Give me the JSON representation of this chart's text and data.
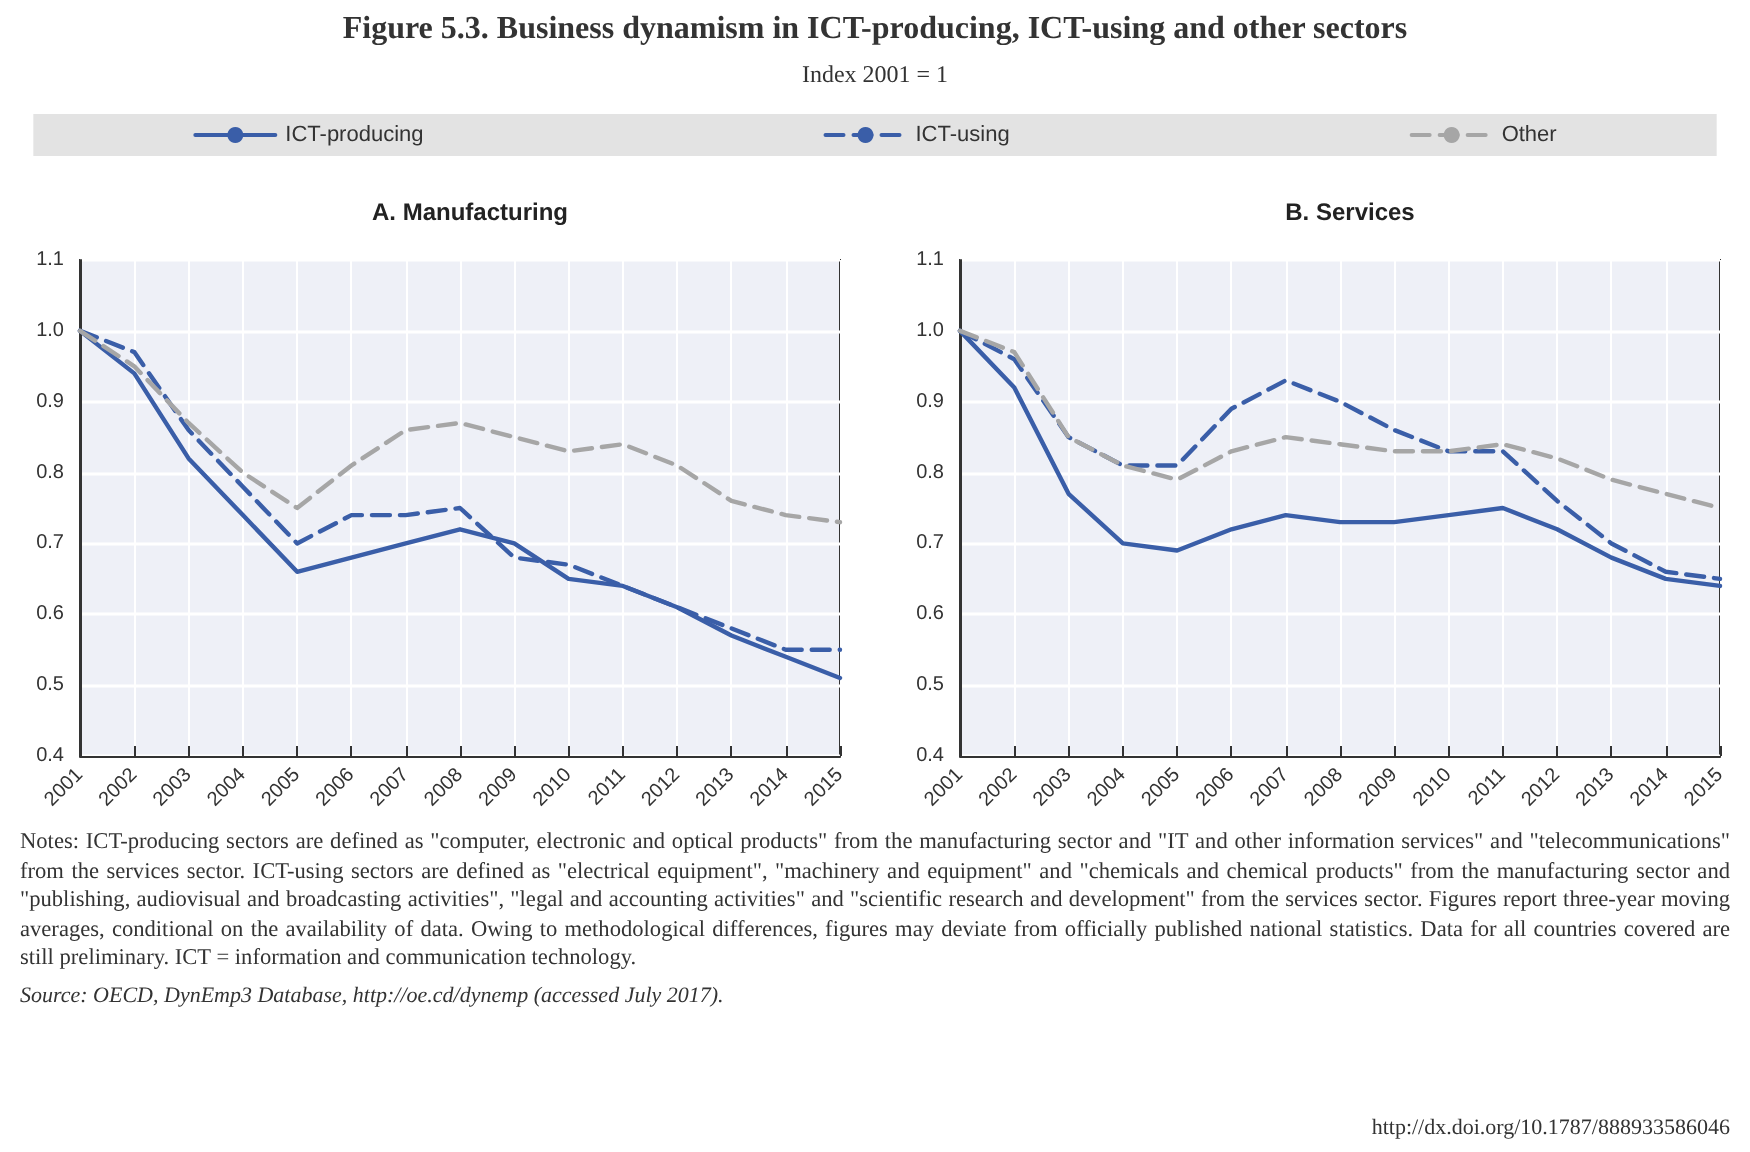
{
  "chart_data": [
    {
      "type": "line",
      "title": "A. Manufacturing",
      "annotations": [
        "Figure 5.3. Business dynamism in ICT-producing, ICT-using and other sectors",
        "Index 2001 = 1"
      ],
      "categories": [
        "2001",
        "2002",
        "2003",
        "2004",
        "2005",
        "2006",
        "2007",
        "2008",
        "2009",
        "2010",
        "2011",
        "2012",
        "2013",
        "2014",
        "2015"
      ],
      "series": [
        {
          "name": "ICT-producing",
          "color": "#3a5ea8",
          "line_style": "solid",
          "values": [
            1.0,
            0.94,
            0.82,
            0.74,
            0.66,
            0.68,
            0.7,
            0.72,
            0.7,
            0.65,
            0.64,
            0.61,
            0.57,
            0.54,
            0.51
          ]
        },
        {
          "name": "ICT-using",
          "color": "#3a5ea8",
          "line_style": "dashed",
          "values": [
            1.0,
            0.97,
            0.86,
            0.78,
            0.7,
            0.74,
            0.74,
            0.75,
            0.68,
            0.67,
            0.64,
            0.61,
            0.58,
            0.55,
            0.55
          ]
        },
        {
          "name": "Other",
          "color": "#a6a6a6",
          "line_style": "dashed",
          "values": [
            1.0,
            0.95,
            0.87,
            0.8,
            0.75,
            0.81,
            0.86,
            0.87,
            0.85,
            0.83,
            0.84,
            0.81,
            0.76,
            0.74,
            0.73
          ]
        }
      ],
      "ylim": [
        0.4,
        1.1
      ],
      "yticks": [
        0.4,
        0.5,
        0.6,
        0.7,
        0.8,
        0.9,
        {
          "value": 1,
          "label": "1.0"
        },
        1.1
      ],
      "grid": true,
      "legend": "top",
      "marker": "none"
    },
    {
      "type": "line",
      "title": "B. Services",
      "annotations": [
        "Notes: ICT-producing sectors are defined as \"computer, electronic and optical products\" from the manufacturing sector and \"IT and other information services\" and \"telecommunications\" from the services sector. ICT-using sectors are defined as \"electrical equipment\", \"machinery and equipment\" and \"chemicals and chemical products\" from the manufacturing sector and \"publishing, audiovisual and broadcasting activities\", \"legal and accounting activities\" and \"scientific research and development\" from the services sector. Figures report three-year moving averages, conditional on the availability of data. Owing to methodological differences, figures may deviate from officially published national statistics. Data for all countries covered are still preliminary. ICT = information and communication technology.",
        "Source: OECD, DynEmp3 Database, http://oe.cd/dynemp (accessed July 2017).",
        "http://dx.doi.org/10.1787/888933586046"
      ],
      "categories": [
        "2001",
        "2002",
        "2003",
        "2004",
        "2005",
        "2006",
        "2007",
        "2008",
        "2009",
        "2010",
        "2011",
        "2012",
        "2013",
        "2014",
        "2015"
      ],
      "series": [
        {
          "color": "#3a5ea8",
          "line_style": "solid",
          "values": [
            1.0,
            0.92,
            0.77,
            0.7,
            0.69,
            0.72,
            0.74,
            0.73,
            0.73,
            0.74,
            0.75,
            0.72,
            0.68,
            0.65,
            0.64
          ]
        },
        {
          "color": "#3a5ea8",
          "line_style": "dashed",
          "values": [
            1.0,
            0.96,
            0.85,
            0.81,
            0.81,
            0.89,
            0.93,
            0.9,
            0.86,
            0.83,
            0.83,
            0.76,
            0.7,
            0.66,
            0.65
          ]
        },
        {
          "color": "#a6a6a6",
          "line_style": "dashed",
          "values": [
            1.0,
            0.97,
            0.85,
            0.81,
            0.79,
            0.83,
            0.85,
            0.84,
            0.83,
            0.83,
            0.84,
            0.82,
            0.79,
            0.77,
            0.75
          ]
        }
      ],
      "ylim": [
        0.4,
        1.1
      ],
      "yticks": [
        0.4,
        0.5,
        0.6,
        0.7,
        0.8,
        0.9,
        {
          "value": 1,
          "label": "1.0"
        },
        1.1
      ],
      "grid": true,
      "legend": false,
      "marker": "none"
    }
  ]
}
